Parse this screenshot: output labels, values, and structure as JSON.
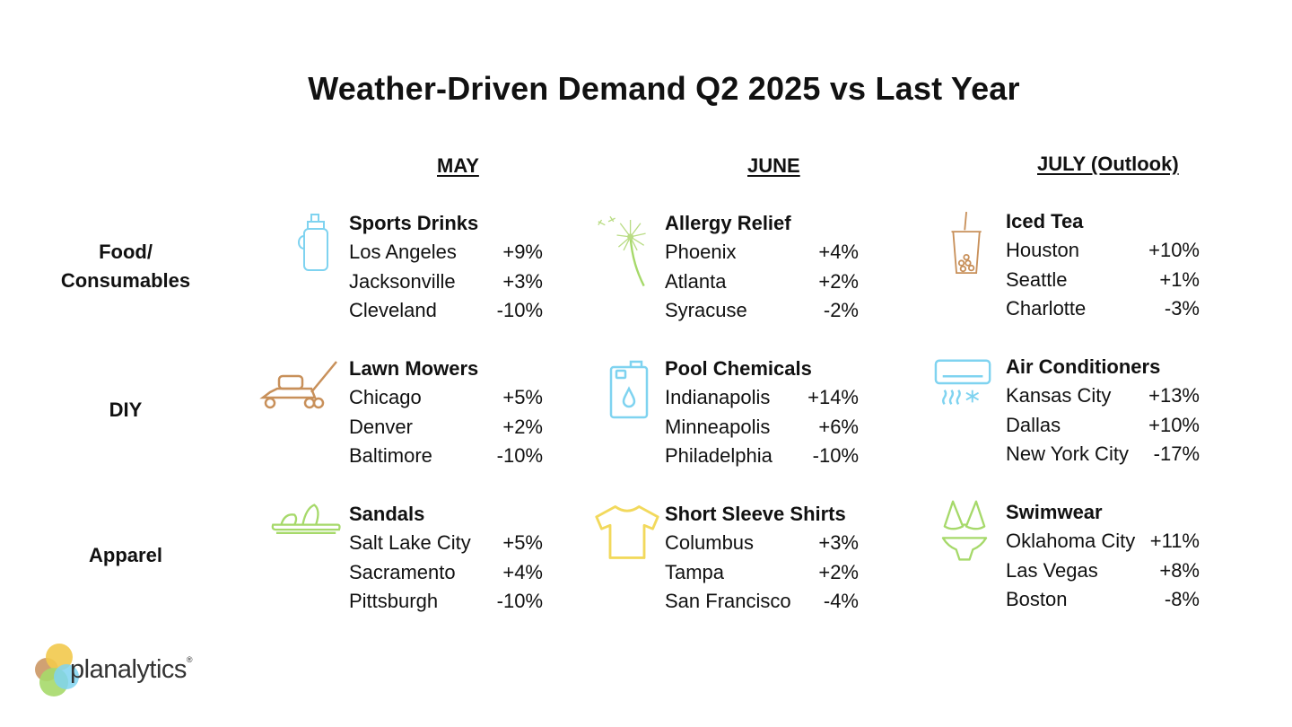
{
  "title": "Weather-Driven Demand Q2 2025 vs Last Year",
  "months": [
    "MAY",
    "JUNE",
    "JULY (Outlook)"
  ],
  "rows": [
    "Food/\nConsumables",
    "DIY",
    "Apparel"
  ],
  "cells": [
    [
      {
        "title": "Sports Drinks",
        "icon": "sports-bottle-icon",
        "color": "#7fd3f0",
        "entries": [
          {
            "city": "Los Angeles",
            "value": "+9%"
          },
          {
            "city": "Jacksonville",
            "value": "+3%"
          },
          {
            "city": "Cleveland",
            "value": "-10%"
          }
        ]
      },
      {
        "title": "Allergy Relief",
        "icon": "dandelion-icon",
        "color": "#a6d96a",
        "entries": [
          {
            "city": "Phoenix",
            "value": "+4%"
          },
          {
            "city": "Atlanta",
            "value": "+2%"
          },
          {
            "city": "Syracuse",
            "value": "-2%"
          }
        ]
      },
      {
        "title": "Iced Tea",
        "icon": "iced-tea-cup-icon",
        "color": "#c8905a",
        "entries": [
          {
            "city": "Houston",
            "value": "+10%"
          },
          {
            "city": "Seattle",
            "value": "+1%"
          },
          {
            "city": "Charlotte",
            "value": "-3%"
          }
        ]
      }
    ],
    [
      {
        "title": "Lawn Mowers",
        "icon": "lawn-mower-icon",
        "color": "#c8905a",
        "entries": [
          {
            "city": "Chicago",
            "value": "+5%"
          },
          {
            "city": "Denver",
            "value": "+2%"
          },
          {
            "city": "Baltimore",
            "value": "-10%"
          }
        ]
      },
      {
        "title": "Pool Chemicals",
        "icon": "chemical-jug-icon",
        "color": "#7fd3f0",
        "entries": [
          {
            "city": "Indianapolis",
            "value": "+14%"
          },
          {
            "city": "Minneapolis",
            "value": "+6%"
          },
          {
            "city": "Philadelphia",
            "value": "-10%"
          }
        ]
      },
      {
        "title": "Air Conditioners",
        "icon": "air-conditioner-icon",
        "color": "#7fd3f0",
        "entries": [
          {
            "city": "Kansas City",
            "value": "+13%"
          },
          {
            "city": "Dallas",
            "value": "+10%"
          },
          {
            "city": "New York City",
            "value": "-17%"
          }
        ]
      }
    ],
    [
      {
        "title": "Sandals",
        "icon": "sandal-icon",
        "color": "#a6d96a",
        "entries": [
          {
            "city": "Salt Lake City",
            "value": "+5%"
          },
          {
            "city": "Sacramento",
            "value": "+4%"
          },
          {
            "city": "Pittsburgh",
            "value": "-10%"
          }
        ]
      },
      {
        "title": "Short Sleeve Shirts",
        "icon": "t-shirt-icon",
        "color": "#f2d95c",
        "entries": [
          {
            "city": "Columbus",
            "value": "+3%"
          },
          {
            "city": "Tampa",
            "value": "+2%"
          },
          {
            "city": "San Francisco",
            "value": "-4%"
          }
        ]
      },
      {
        "title": "Swimwear",
        "icon": "bikini-icon",
        "color": "#a6d96a",
        "entries": [
          {
            "city": "Oklahoma City",
            "value": "+11%"
          },
          {
            "city": "Las Vegas",
            "value": "+8%"
          },
          {
            "city": "Boston",
            "value": "-8%"
          }
        ]
      }
    ]
  ],
  "logo": {
    "text": "planalytics",
    "mark": "®",
    "colors": [
      "#f2c94c",
      "#a6d96a",
      "#7fd3f0",
      "#c8905a"
    ]
  }
}
